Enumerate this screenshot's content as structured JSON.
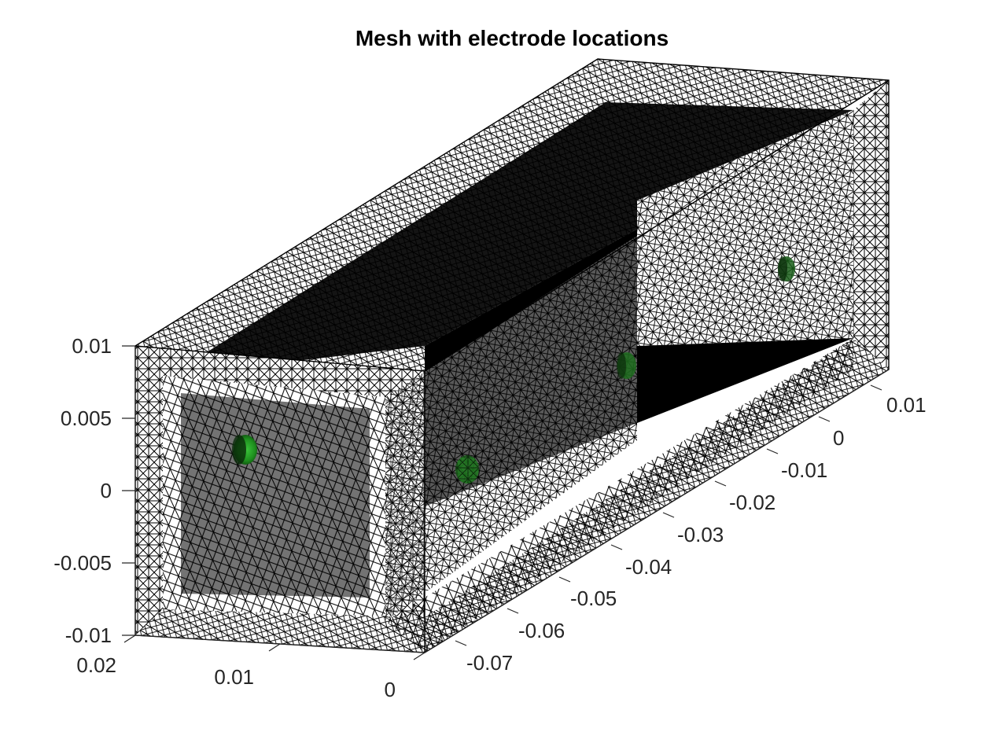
{
  "figure": {
    "title": "Mesh with electrode locations",
    "colors": {
      "mesh": "#000000",
      "electrode": "#1e9a1e",
      "background": "#ffffff",
      "axis_text": "#262626"
    }
  },
  "axes": {
    "z_ticks": [
      "0.01",
      "0.005",
      "0",
      "-0.005",
      "-0.01"
    ],
    "x_ticks": [
      "0.02",
      "0.01",
      "0"
    ],
    "y_ticks": [
      "0.01",
      "0",
      "-0.01",
      "-0.02",
      "-0.03",
      "-0.04",
      "-0.05",
      "-0.06",
      "-0.07"
    ]
  },
  "electrodes": [
    "electrode-1",
    "electrode-2",
    "electrode-3",
    "electrode-4"
  ]
}
